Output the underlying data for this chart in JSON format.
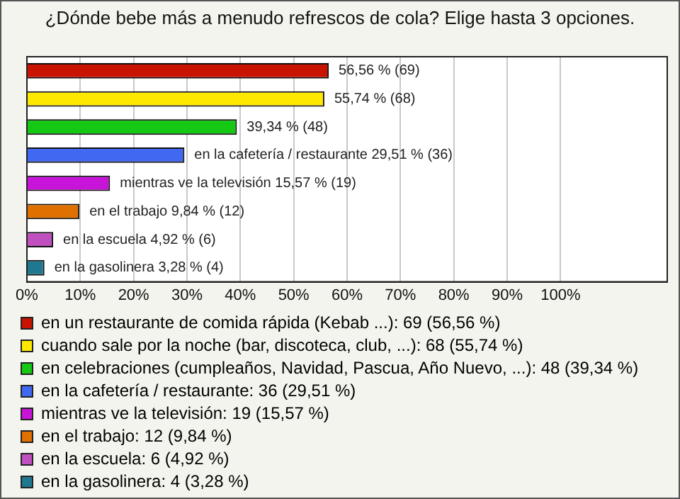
{
  "chart_data": {
    "type": "bar",
    "orientation": "horizontal",
    "title": "¿Dónde bebe más a menudo refrescos de cola? Elige hasta 3 opciones.",
    "categories": [
      null
    ],
    "series": [
      {
        "name": "en un restaurante de comida rápida (Kebab ...): 69 (56,56 %)",
        "color": "#c81400",
        "values": [
          56.56
        ],
        "value_labels": [
          "56,56 % (69)"
        ]
      },
      {
        "name": "cuando sale por la noche (bar, discoteca, club, ...): 68 (55,74 %)",
        "color": "#ffe800",
        "values": [
          55.74
        ],
        "value_labels": [
          "55,74 % (68)"
        ]
      },
      {
        "name": "en celebraciones (cumpleaños, Navidad, Pascua, Año Nuevo, ...): 48 (39,34 %)",
        "color": "#14c814",
        "values": [
          39.34
        ],
        "value_labels": [
          "39,34 % (48)"
        ]
      },
      {
        "name": "en la cafetería / restaurante: 36 (29,51 %)",
        "color": "#4068f0",
        "values": [
          29.51
        ],
        "value_labels": [
          "en la cafetería / restaurante 29,51 % (36)"
        ]
      },
      {
        "name": "mientras ve la televisión: 19 (15,57 %)",
        "color": "#c814d8",
        "values": [
          15.57
        ],
        "value_labels": [
          "mientras ve la televisión 15,57 % (19)"
        ]
      },
      {
        "name": "en el trabajo: 12 (9,84 %)",
        "color": "#e07000",
        "values": [
          9.84
        ],
        "value_labels": [
          "en el trabajo 9,84 % (12)"
        ]
      },
      {
        "name": "en la escuela: 6 (4,92 %)",
        "color": "#c050c0",
        "values": [
          4.92
        ],
        "value_labels": [
          "en la escuela 4,92 % (6)"
        ]
      },
      {
        "name": "en la gasolinera: 4 (3,28 %)",
        "color": "#207890",
        "values": [
          3.28
        ],
        "value_labels": [
          "en la gasolinera 3,28 % (4)"
        ]
      }
    ],
    "xlim": [
      0,
      120
    ],
    "xticks": [
      {
        "value": 0,
        "label": "0%"
      },
      {
        "value": 10,
        "label": "10%"
      },
      {
        "value": 20,
        "label": "20%"
      },
      {
        "value": 30,
        "label": "30%"
      },
      {
        "value": 40,
        "label": "40%"
      },
      {
        "value": 50,
        "label": "50%"
      },
      {
        "value": 60,
        "label": "60%"
      },
      {
        "value": 70,
        "label": "70%"
      },
      {
        "value": 80,
        "label": "80%"
      },
      {
        "value": 90,
        "label": "90%"
      },
      {
        "value": 100,
        "label": "100%"
      },
      {
        "value": 120,
        "label": null
      }
    ],
    "grid": "x",
    "legend": "bottom",
    "tick_labels": "x"
  }
}
